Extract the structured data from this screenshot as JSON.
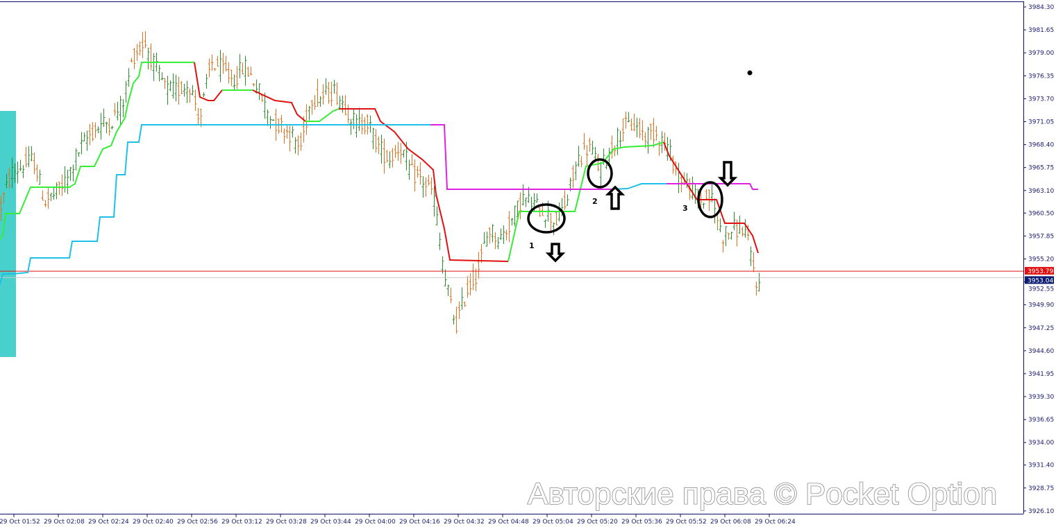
{
  "chart_data": {
    "type": "ohlc-bar",
    "title": "",
    "xlabel": "",
    "ylabel": "",
    "ylim": [
      3926.1,
      3984.3
    ],
    "y_ticks": [
      "3984.30",
      "3981.65",
      "3979.00",
      "3976.35",
      "3973.70",
      "3971.05",
      "3968.40",
      "3965.75",
      "3963.10",
      "3960.50",
      "3957.85",
      "3955.20",
      "3952.55",
      "3949.90",
      "3947.25",
      "3944.60",
      "3941.95",
      "3939.30",
      "3936.65",
      "3934.00",
      "3931.40",
      "3928.75",
      "3926.10"
    ],
    "x_ticks": [
      "29 Oct 01:52",
      "29 Oct 02:08",
      "29 Oct 02:24",
      "29 Oct 02:40",
      "29 Oct 02:56",
      "29 Oct 03:12",
      "29 Oct 03:28",
      "29 Oct 03:44",
      "29 Oct 04:00",
      "29 Oct 04:16",
      "29 Oct 04:32",
      "29 Oct 04:48",
      "29 Oct 05:04",
      "29 Oct 05:20",
      "29 Oct 05:36",
      "29 Oct 05:52",
      "29 Oct 06:08",
      "29 Oct 06:24"
    ],
    "price_samples": [
      3961.08,
      3965.08,
      3965.89,
      3966.69,
      3961.88,
      3962.68,
      3964.28,
      3967.49,
      3969.49,
      3970.69,
      3971.09,
      3973.09,
      3978.7,
      3980.3,
      3977.09,
      3974.69,
      3974.69,
      3975.49,
      3971.49,
      3977.89,
      3977.09,
      3975.89,
      3977.49,
      3975.49,
      3972.29,
      3970.69,
      3969.89,
      3967.89,
      3973.89,
      3973.89,
      3974.69,
      3973.09,
      3970.69,
      3971.09,
      3968.29,
      3966.69,
      3968.29,
      3965.08,
      3964.28,
      3962.68,
      3953.08,
      3947.47,
      3951.5,
      3953.88,
      3958.68,
      3957.48,
      3959.48,
      3962.28,
      3961.48,
      3960.68,
      3959.48,
      3961.88,
      3966.69,
      3968.29,
      3965.49,
      3967.89,
      3970.29,
      3970.69,
      3969.49,
      3969.89,
      3968.29,
      3965.08,
      3963.48,
      3961.88,
      3962.28,
      3957.88,
      3958.68,
      3958.68,
      3953.08
    ],
    "bar_colors": {
      "up": "#2e8b2e",
      "down": "#e0701e"
    },
    "indicators": [
      {
        "segments": [
          {
            "color": "#33ee33",
            "points": [
              [
                "01:47",
                3957.48
              ],
              [
                "01:48",
                3957.88
              ],
              [
                "01:49",
                3960.44
              ],
              [
                "01:54",
                3960.44
              ],
              [
                "01:58",
                3963.48
              ],
              [
                "02:12",
                3963.48
              ],
              [
                "02:14",
                3963.88
              ],
              [
                "02:16",
                3965.89
              ],
              [
                "02:21",
                3965.89
              ],
              [
                "02:24",
                3967.89
              ],
              [
                "02:27",
                3968.29
              ],
              [
                "02:29",
                3969.89
              ],
              [
                "02:32",
                3971.49
              ],
              [
                "02:33",
                3973.09
              ],
              [
                "02:35",
                3975.49
              ],
              [
                "02:37",
                3976.29
              ],
              [
                "02:38",
                3977.9
              ],
              [
                "02:57",
                3977.9
              ]
            ]
          },
          {
            "color": "#e01010",
            "points": [
              [
                "02:57",
                3977.9
              ],
              [
                "02:59",
                3973.89
              ],
              [
                "03:02",
                3973.49
              ],
              [
                "03:04",
                3973.49
              ],
              [
                "03:07",
                3974.69
              ]
            ]
          },
          {
            "color": "#33ee33",
            "points": [
              [
                "03:07",
                3974.69
              ],
              [
                "03:18",
                3974.69
              ]
            ]
          },
          {
            "color": "#e01010",
            "points": [
              [
                "03:18",
                3974.69
              ],
              [
                "03:26",
                3973.49
              ],
              [
                "03:32",
                3973.25
              ],
              [
                "03:34",
                3971.89
              ],
              [
                "03:37",
                3971.09
              ]
            ]
          },
          {
            "color": "#33ee33",
            "points": [
              [
                "03:37",
                3971.09
              ],
              [
                "03:42",
                3971.09
              ],
              [
                "03:47",
                3972.29
              ],
              [
                "03:49",
                3972.53
              ]
            ]
          },
          {
            "color": "#e01010",
            "points": [
              [
                "03:49",
                3972.53
              ],
              [
                "04:02",
                3972.53
              ],
              [
                "04:04",
                3971.09
              ],
              [
                "04:09",
                3969.89
              ],
              [
                "04:14",
                3967.89
              ],
              [
                "04:19",
                3966.69
              ],
              [
                "04:23",
                3965.49
              ],
              [
                "04:24",
                3962.68
              ],
              [
                "04:27",
                3958.68
              ],
              [
                "04:29",
                3955.08
              ],
              [
                "04:50",
                3954.92
              ]
            ]
          },
          {
            "color": "#33ee33",
            "points": [
              [
                "04:50",
                3954.92
              ],
              [
                "04:54",
                3960.68
              ],
              [
                "05:14",
                3960.68
              ],
              [
                "05:18",
                3965.89
              ],
              [
                "05:24",
                3966.29
              ],
              [
                "05:28",
                3967.89
              ],
              [
                "05:32",
                3968.13
              ],
              [
                "05:42",
                3968.29
              ],
              [
                "05:46",
                3968.69
              ]
            ]
          },
          {
            "color": "#e01010",
            "points": [
              [
                "05:46",
                3968.69
              ],
              [
                "05:48",
                3967.09
              ],
              [
                "05:52",
                3965.08
              ],
              [
                "05:58",
                3962.04
              ],
              [
                "06:05",
                3962.04
              ],
              [
                "06:08",
                3959.32
              ],
              [
                "06:15",
                3959.32
              ],
              [
                "06:18",
                3957.88
              ],
              [
                "06:20",
                3955.88
              ]
            ]
          }
        ]
      },
      {
        "segments": [
          {
            "color": "#1ec0e8",
            "points": [
              [
                "01:47",
                3952.27
              ],
              [
                "01:48",
                3953.48
              ],
              [
                "01:52",
                3953.48
              ],
              [
                "01:57",
                3953.64
              ],
              [
                "01:58",
                3955.32
              ],
              [
                "02:12",
                3955.32
              ],
              [
                "02:13",
                3957.24
              ],
              [
                "02:22",
                3957.24
              ],
              [
                "02:23",
                3960.04
              ],
              [
                "02:28",
                3960.04
              ],
              [
                "02:29",
                3964.92
              ],
              [
                "02:32",
                3964.92
              ],
              [
                "02:33",
                3968.69
              ],
              [
                "02:37",
                3968.69
              ],
              [
                "02:38",
                3970.69
              ],
              [
                "04:22",
                3970.69
              ]
            ]
          },
          {
            "color": "#e020e0",
            "points": [
              [
                "04:22",
                3970.69
              ],
              [
                "04:27",
                3970.69
              ],
              [
                "04:28",
                3963.24
              ],
              [
                "05:27",
                3963.24
              ]
            ]
          },
          {
            "color": "#1ec0e8",
            "points": [
              [
                "05:27",
                3963.24
              ],
              [
                "05:33",
                3963.32
              ],
              [
                "05:38",
                3963.88
              ],
              [
                "05:47",
                3963.88
              ]
            ]
          },
          {
            "color": "#e020e0",
            "points": [
              [
                "05:47",
                3963.88
              ],
              [
                "06:17",
                3963.88
              ],
              [
                "06:18",
                3963.24
              ],
              [
                "06:20",
                3963.24
              ]
            ]
          }
        ]
      }
    ],
    "hlines": [
      {
        "price": 3953.79,
        "label": "3953.79",
        "color": "#e01010"
      },
      {
        "price": 3953.04,
        "label": "3953.04",
        "color": "#0a1a6e"
      }
    ],
    "highlight_zone": {
      "color": "#48d1cc",
      "price_top": 3972.29,
      "price_bottom": 3943.87
    },
    "marker_dot": {
      "time": "06:17",
      "price": 3976.69
    },
    "annotations": [
      "1",
      "2",
      "3"
    ]
  },
  "watermark": "Авторские права © Pocket Option"
}
